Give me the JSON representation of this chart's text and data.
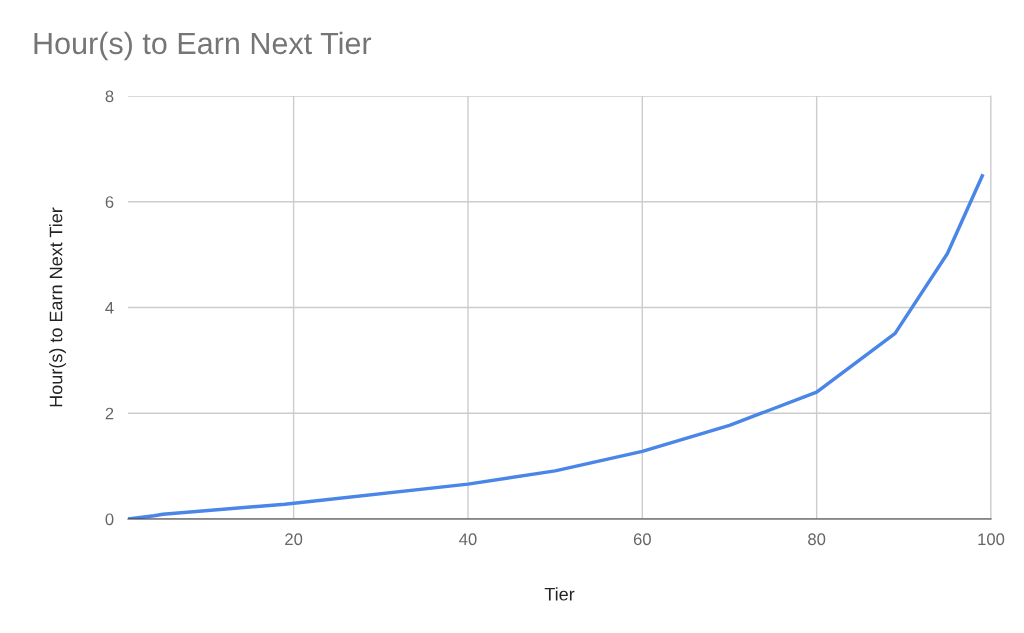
{
  "chart_data": {
    "type": "line",
    "title": "Hour(s) to Earn Next Tier",
    "xlabel": "Tier",
    "ylabel": "Hour(s) to Earn Next Tier",
    "x": [
      1,
      4,
      5,
      19,
      40,
      50,
      60,
      70,
      80,
      89,
      95,
      99
    ],
    "series": [
      {
        "color": "#4a86e8",
        "values": [
          0,
          0.06,
          0.09,
          0.28,
          0.66,
          0.91,
          1.28,
          1.77,
          2.4,
          3.51,
          5.02,
          6.49
        ]
      }
    ],
    "xlim": [
      1,
      100
    ],
    "xticks": [
      20,
      40,
      60,
      80,
      100
    ],
    "ylim": [
      0,
      8
    ],
    "yticks": [
      0,
      2,
      4,
      6,
      8
    ],
    "grid": true,
    "marker": "none",
    "line_style": "solid"
  }
}
